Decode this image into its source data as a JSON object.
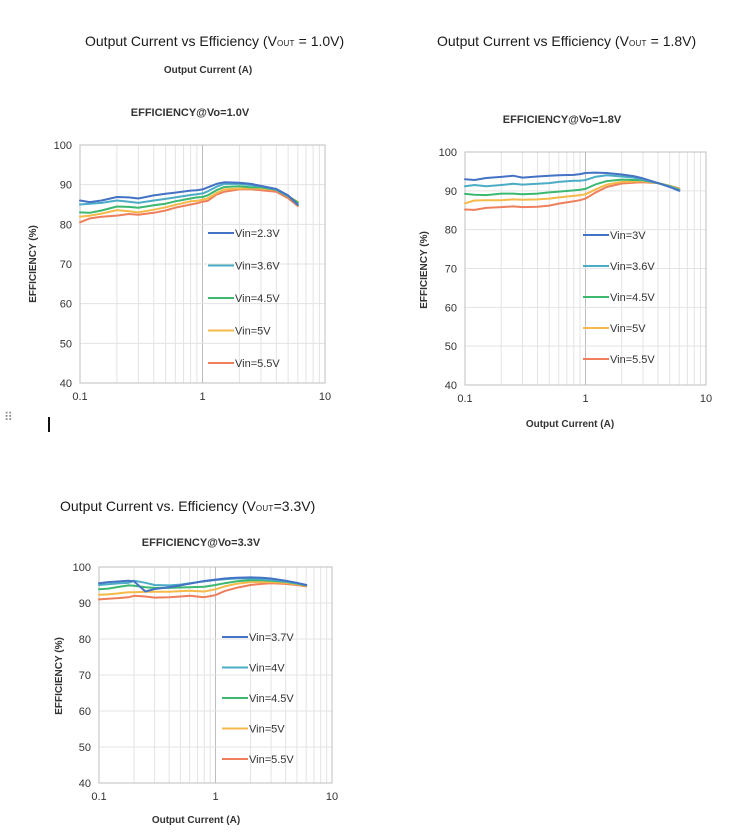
{
  "headings": {
    "c1": {
      "pre": "Output Current vs Efficiency (V",
      "sub": "OUT",
      "post": " = 1.0V)"
    },
    "c2": {
      "pre": "Output Current vs Efficiency (V",
      "sub": "OUT",
      "post": " = 1.8V)"
    },
    "c3": {
      "pre": "Output Current vs. Efficiency (V",
      "sub": "OUT",
      "post": "=3.3V)"
    }
  },
  "colors": {
    "grid_minor": "#e3e3e3",
    "grid_major": "#bdbdbd",
    "axis": "#bfbfbf",
    "series": [
      "#4472c4",
      "#4bacc6",
      "#3cb870",
      "#f5b949",
      "#ee7f5c"
    ]
  },
  "chart_data": [
    {
      "type": "line",
      "title": "EFFICIENCY@Vo=1.0V",
      "xlabel": "Output Current  (A)",
      "ylabel": "EFFICIENCY  (%)",
      "xscale": "log",
      "xlim": [
        0.1,
        10
      ],
      "ylim": [
        40,
        100
      ],
      "x_ticks": [
        "0.1",
        "1",
        "10"
      ],
      "y_ticks": [
        "40",
        "50",
        "60",
        "70",
        "80",
        "90",
        "100"
      ],
      "legend_position": "center-right",
      "x": [
        0.1,
        0.12,
        0.15,
        0.2,
        0.25,
        0.3,
        0.4,
        0.5,
        0.6,
        0.8,
        0.9,
        1.0,
        1.1,
        1.3,
        1.5,
        2.0,
        2.5,
        3.0,
        4.0,
        5.0,
        6.0
      ],
      "series": [
        {
          "name": "Vin=2.3V",
          "values": [
            86.0,
            85.6,
            86.0,
            86.9,
            86.8,
            86.5,
            87.3,
            87.7,
            88.0,
            88.5,
            88.6,
            88.8,
            89.3,
            90.2,
            90.6,
            90.5,
            90.2,
            89.7,
            88.9,
            87.3,
            85.0
          ]
        },
        {
          "name": "Vin=3.6V",
          "values": [
            85.0,
            85.2,
            85.4,
            86.0,
            85.7,
            85.4,
            86.0,
            86.4,
            86.8,
            87.4,
            87.6,
            87.8,
            88.3,
            89.5,
            90.2,
            90.2,
            89.9,
            89.6,
            88.8,
            87.2,
            84.9
          ]
        },
        {
          "name": "Vin=4.5V",
          "values": [
            83.0,
            82.9,
            83.5,
            84.5,
            84.4,
            84.2,
            84.8,
            85.2,
            85.8,
            86.5,
            86.8,
            86.9,
            87.3,
            88.6,
            89.4,
            89.6,
            89.3,
            89.3,
            88.7,
            87.1,
            85.5
          ]
        },
        {
          "name": "Vin=5V",
          "values": [
            81.9,
            82.2,
            82.7,
            83.6,
            83.3,
            83.0,
            83.7,
            84.3,
            84.9,
            85.8,
            85.9,
            86.2,
            86.5,
            87.9,
            88.8,
            89.0,
            89.1,
            89.0,
            88.7,
            87.1,
            85.7
          ]
        },
        {
          "name": "Vin=5.5V",
          "values": [
            80.5,
            81.5,
            81.9,
            82.2,
            82.6,
            82.4,
            82.9,
            83.5,
            84.2,
            85.0,
            85.3,
            85.7,
            85.9,
            87.5,
            88.2,
            88.8,
            88.8,
            88.6,
            88.2,
            86.6,
            84.6
          ]
        }
      ]
    },
    {
      "type": "line",
      "title": "EFFICIENCY@Vo=1.8V",
      "xlabel": "Output Current  (A)",
      "ylabel": "EFFICIENCY  (%)",
      "xscale": "log",
      "xlim": [
        0.1,
        10
      ],
      "ylim": [
        40,
        100
      ],
      "x_ticks": [
        "0.1",
        "1",
        "10"
      ],
      "y_ticks": [
        "40",
        "50",
        "60",
        "70",
        "80",
        "90",
        "100"
      ],
      "legend_position": "center-right",
      "x": [
        0.1,
        0.12,
        0.15,
        0.2,
        0.25,
        0.3,
        0.4,
        0.5,
        0.6,
        0.8,
        0.9,
        1.0,
        1.2,
        1.5,
        2.0,
        2.5,
        3.0,
        4.0,
        5.0,
        6.0
      ],
      "series": [
        {
          "name": "Vin=3V",
          "values": [
            93.0,
            92.8,
            93.3,
            93.6,
            93.9,
            93.4,
            93.7,
            93.9,
            94.0,
            94.1,
            94.3,
            94.6,
            94.7,
            94.6,
            94.2,
            93.8,
            93.2,
            92.0,
            91.0,
            90.0
          ]
        },
        {
          "name": "Vin=3.6V",
          "values": [
            91.2,
            91.5,
            91.2,
            91.5,
            91.8,
            91.6,
            91.8,
            92.0,
            92.3,
            92.6,
            92.6,
            92.8,
            93.6,
            94.0,
            93.7,
            93.4,
            92.9,
            92.0,
            91.1,
            90.1
          ]
        },
        {
          "name": "Vin=4.5V",
          "values": [
            89.2,
            89.0,
            88.9,
            89.3,
            89.3,
            89.1,
            89.3,
            89.6,
            89.8,
            90.1,
            90.3,
            90.5,
            91.6,
            92.5,
            92.9,
            92.8,
            92.7,
            92.0,
            91.2,
            90.3
          ]
        },
        {
          "name": "Vin=5V",
          "values": [
            86.8,
            87.5,
            87.6,
            87.6,
            87.8,
            87.7,
            87.8,
            88.0,
            88.3,
            88.7,
            88.9,
            89.1,
            90.3,
            91.6,
            92.3,
            92.4,
            92.5,
            92.0,
            91.3,
            90.5
          ]
        },
        {
          "name": "Vin=5.5V",
          "values": [
            85.2,
            85.1,
            85.6,
            85.8,
            86.0,
            85.8,
            85.9,
            86.2,
            86.7,
            87.3,
            87.6,
            88.0,
            89.5,
            91.0,
            91.9,
            92.1,
            92.2,
            92.0,
            91.3,
            90.6
          ]
        }
      ]
    },
    {
      "type": "line",
      "title": "EFFICIENCY@Vo=3.3V",
      "xlabel": "Output Current  (A)",
      "ylabel": "EFFICIENCY  (%)",
      "xscale": "log",
      "xlim": [
        0.1,
        10
      ],
      "ylim": [
        40,
        100
      ],
      "x_ticks": [
        "0.1",
        "1",
        "10"
      ],
      "y_ticks": [
        "40",
        "50",
        "60",
        "70",
        "80",
        "90",
        "100"
      ],
      "legend_position": "center-right",
      "x": [
        0.1,
        0.12,
        0.15,
        0.18,
        0.2,
        0.25,
        0.3,
        0.4,
        0.5,
        0.6,
        0.8,
        1.0,
        1.2,
        1.5,
        2.0,
        2.5,
        3.0,
        4.0,
        5.0,
        6.0
      ],
      "series": [
        {
          "name": "Vin=3.7V",
          "values": [
            95.5,
            95.8,
            96.0,
            96.2,
            96.0,
            93.2,
            93.9,
            94.4,
            94.9,
            95.4,
            96.1,
            96.5,
            96.8,
            97.0,
            97.1,
            97.0,
            96.8,
            96.2,
            95.6,
            95.0
          ]
        },
        {
          "name": "Vin=4V",
          "values": [
            95.0,
            95.2,
            95.5,
            95.6,
            96.2,
            95.6,
            95.0,
            94.9,
            95.1,
            95.5,
            96.0,
            96.4,
            96.6,
            96.8,
            96.8,
            96.6,
            96.4,
            96.0,
            95.5,
            95.0
          ]
        },
        {
          "name": "Vin=4.5V",
          "values": [
            93.8,
            94.0,
            94.5,
            94.9,
            94.8,
            94.4,
            94.2,
            94.2,
            94.3,
            94.4,
            94.5,
            95.0,
            95.5,
            96.0,
            96.3,
            96.3,
            96.2,
            95.9,
            95.4,
            94.9
          ]
        },
        {
          "name": "Vin=5V",
          "values": [
            92.3,
            92.4,
            92.7,
            93.0,
            93.0,
            93.1,
            93.1,
            93.1,
            93.3,
            93.4,
            93.2,
            93.8,
            94.6,
            95.3,
            95.8,
            95.8,
            95.8,
            95.6,
            95.2,
            94.8
          ]
        },
        {
          "name": "Vin=5.5V",
          "values": [
            91.0,
            91.2,
            91.4,
            91.6,
            92.0,
            91.8,
            91.5,
            91.6,
            91.8,
            92.0,
            91.6,
            92.2,
            93.3,
            94.2,
            95.0,
            95.3,
            95.5,
            95.3,
            95.0,
            94.6
          ]
        }
      ]
    }
  ]
}
